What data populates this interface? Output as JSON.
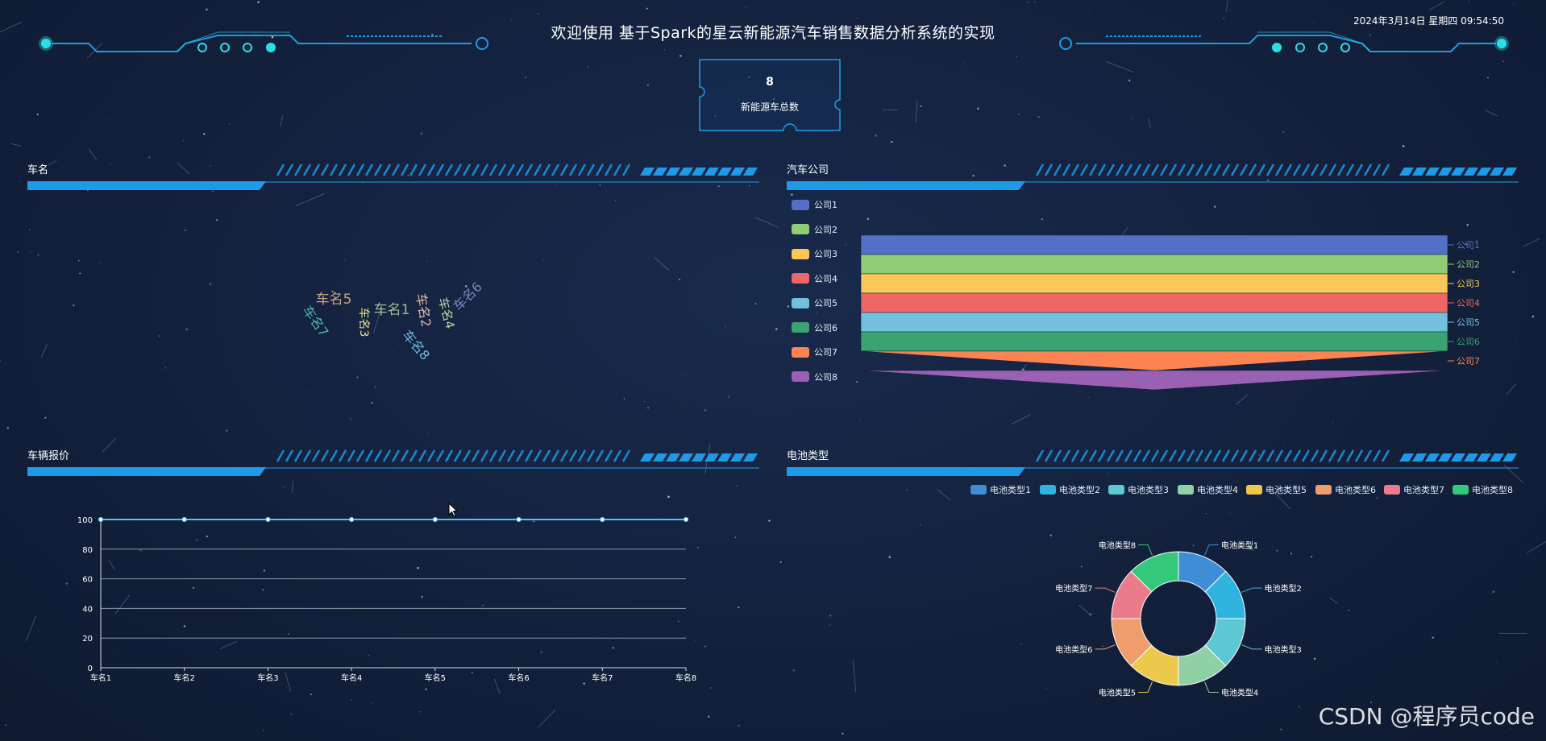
{
  "header": {
    "title": "欢迎使用 基于Spark的星云新能源汽车销售数据分析系统的实现",
    "datetime": "2024年3月14日 星期四 09:54:50"
  },
  "summary": {
    "value": "8",
    "label": "新能源车总数"
  },
  "panels": {
    "car_names": {
      "title": "车名"
    },
    "companies": {
      "title": "汽车公司"
    },
    "prices": {
      "title": "车辆报价"
    },
    "battery": {
      "title": "电池类型"
    }
  },
  "colors": {
    "accent": "#1d9be8",
    "cyan": "#27e0e8",
    "background": "#13203b",
    "palette": [
      "#5470c6",
      "#91cc75",
      "#fac858",
      "#ee6666",
      "#73c0de",
      "#3ba272",
      "#fc8452",
      "#9a60b4"
    ],
    "pie_palette": [
      "#3d8ed6",
      "#2fb4e0",
      "#5cc8d4",
      "#90d0a6",
      "#ecc94b",
      "#ee9d6b",
      "#ea7b8b",
      "#34c97a"
    ]
  },
  "chart_data": [
    {
      "type": "wordcloud",
      "panel": "车名",
      "words": [
        "车名5",
        "车名3",
        "车名1",
        "车名2",
        "车名4",
        "车名6",
        "车名7",
        "车名8"
      ],
      "word_colors": [
        "#c8a77a",
        "#e8e08a",
        "#a8b894",
        "#d8b8a0",
        "#b8d4a0",
        "#7a86b8",
        "#4fb8a0",
        "#6fb8e0"
      ]
    },
    {
      "type": "funnel",
      "panel": "汽车公司",
      "categories": [
        "公司1",
        "公司2",
        "公司3",
        "公司4",
        "公司5",
        "公司6",
        "公司7",
        "公司8"
      ],
      "values": [
        100,
        100,
        100,
        100,
        100,
        100,
        100,
        0
      ],
      "legend_position": "left"
    },
    {
      "type": "line",
      "panel": "车辆报价",
      "categories": [
        "车名1",
        "车名2",
        "车名3",
        "车名4",
        "车名5",
        "车名6",
        "车名7",
        "车名8"
      ],
      "values": [
        100,
        100,
        100,
        100,
        100,
        100,
        100,
        100
      ],
      "ylim": [
        0,
        100
      ],
      "yticks": [
        "0",
        "20",
        "40",
        "60",
        "80",
        "100"
      ],
      "grid": true
    },
    {
      "type": "pie",
      "subtype": "donut",
      "panel": "电池类型",
      "categories": [
        "电池类型1",
        "电池类型2",
        "电池类型3",
        "电池类型4",
        "电池类型5",
        "电池类型6",
        "电池类型7",
        "电池类型8"
      ],
      "values": [
        1,
        1,
        1,
        1,
        1,
        1,
        1,
        1
      ],
      "legend_position": "top"
    }
  ],
  "watermark": "CSDN @程序员code"
}
